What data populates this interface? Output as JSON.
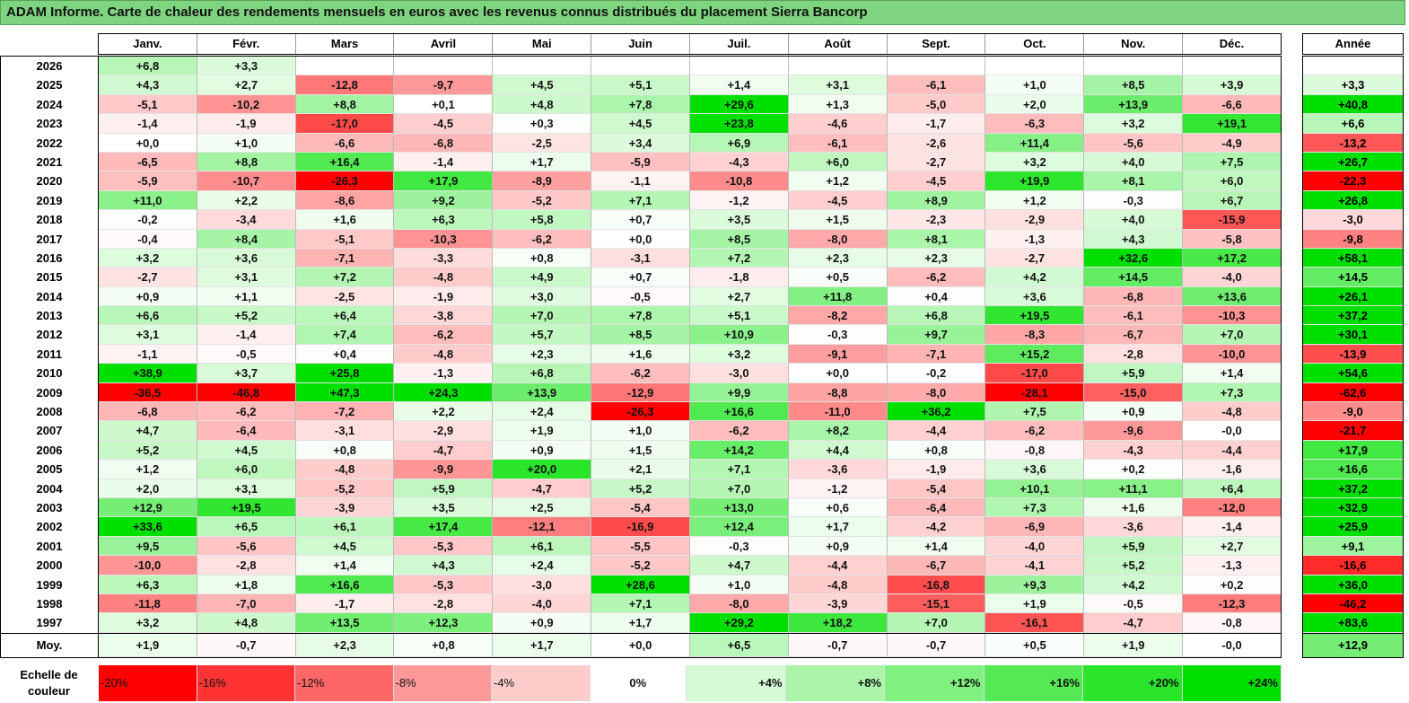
{
  "title": "ADAM Informe. Carte de chaleur des rendements mensuels en euros avec les revenus connus distribués du placement Sierra Bancorp",
  "chart_data": {
    "type": "heatmap",
    "title": "ADAM Informe. Carte de chaleur des rendements mensuels en euros avec les revenus connus distribués du placement Sierra Bancorp",
    "months": [
      "Janv.",
      "Févr.",
      "Mars",
      "Avril",
      "Mai",
      "Juin",
      "Juil.",
      "Août",
      "Sept.",
      "Oct.",
      "Nov.",
      "Déc."
    ],
    "year_header": "Année",
    "rows": [
      {
        "year": "2026",
        "values": [
          "+6,8",
          "+3,3",
          "",
          "",
          "",
          "",
          "",
          "",
          "",
          "",
          "",
          ""
        ],
        "annual": ""
      },
      {
        "year": "2025",
        "values": [
          "+4,3",
          "+2,7",
          "-12,8",
          "-9,7",
          "+4,5",
          "+5,1",
          "+1,4",
          "+3,1",
          "-6,1",
          "+1,0",
          "+8,5",
          "+3,9"
        ],
        "annual": "+3,3"
      },
      {
        "year": "2024",
        "values": [
          "-5,1",
          "-10,2",
          "+8,8",
          "+0,1",
          "+4,8",
          "+7,8",
          "+29,6",
          "+1,3",
          "-5,0",
          "+2,0",
          "+13,9",
          "-6,6"
        ],
        "annual": "+40,8"
      },
      {
        "year": "2023",
        "values": [
          "-1,4",
          "-1,9",
          "-17,0",
          "-4,5",
          "+0,3",
          "+4,5",
          "+23,8",
          "-4,6",
          "-1,7",
          "-6,3",
          "+3,2",
          "+19,1"
        ],
        "annual": "+6,6"
      },
      {
        "year": "2022",
        "values": [
          "+0,0",
          "+1,0",
          "-6,6",
          "-6,8",
          "-2,5",
          "+3,4",
          "+6,9",
          "-6,1",
          "-2,6",
          "+11,4",
          "-5,6",
          "-4,9"
        ],
        "annual": "-13,2"
      },
      {
        "year": "2021",
        "values": [
          "-6,5",
          "+8,8",
          "+16,4",
          "-1,4",
          "+1,7",
          "-5,9",
          "-4,3",
          "+6,0",
          "-2,7",
          "+3,2",
          "+4,0",
          "+7,5"
        ],
        "annual": "+26,7"
      },
      {
        "year": "2020",
        "values": [
          "-5,9",
          "-10,7",
          "-26,3",
          "+17,9",
          "-8,9",
          "-1,1",
          "-10,8",
          "+1,2",
          "-4,5",
          "+19,9",
          "+8,1",
          "+6,0"
        ],
        "annual": "-22,3"
      },
      {
        "year": "2019",
        "values": [
          "+11,0",
          "+2,2",
          "-8,6",
          "+9,2",
          "-5,2",
          "+7,1",
          "-1,2",
          "-4,5",
          "+8,9",
          "+1,2",
          "-0,3",
          "+6,7"
        ],
        "annual": "+26,8"
      },
      {
        "year": "2018",
        "values": [
          "-0,2",
          "-3,4",
          "+1,6",
          "+6,3",
          "+5,8",
          "+0,7",
          "+3,5",
          "+1,5",
          "-2,3",
          "-2,9",
          "+4,0",
          "-15,9"
        ],
        "annual": "-3,0"
      },
      {
        "year": "2017",
        "values": [
          "-0,4",
          "+8,4",
          "-5,1",
          "-10,3",
          "-6,2",
          "+0,0",
          "+8,5",
          "-8,0",
          "+8,1",
          "-1,3",
          "+4,3",
          "-5,8"
        ],
        "annual": "-9,8"
      },
      {
        "year": "2016",
        "values": [
          "+3,2",
          "+3,6",
          "-7,1",
          "-3,3",
          "+0,8",
          "-3,1",
          "+7,2",
          "+2,3",
          "+2,3",
          "-2,7",
          "+32,6",
          "+17,2"
        ],
        "annual": "+58,1"
      },
      {
        "year": "2015",
        "values": [
          "-2,7",
          "+3,1",
          "+7,2",
          "-4,8",
          "+4,9",
          "+0,7",
          "-1,8",
          "+0,5",
          "-6,2",
          "+4,2",
          "+14,5",
          "-4,0"
        ],
        "annual": "+14,5"
      },
      {
        "year": "2014",
        "values": [
          "+0,9",
          "+1,1",
          "-2,5",
          "-1,9",
          "+3,0",
          "-0,5",
          "+2,7",
          "+11,8",
          "+0,4",
          "+3,6",
          "-6,8",
          "+13,6"
        ],
        "annual": "+26,1"
      },
      {
        "year": "2013",
        "values": [
          "+6,6",
          "+5,2",
          "+6,4",
          "-3,8",
          "+7,0",
          "+7,8",
          "+5,1",
          "-8,2",
          "+6,8",
          "+19,5",
          "-6,1",
          "-10,3"
        ],
        "annual": "+37,2"
      },
      {
        "year": "2012",
        "values": [
          "+3,1",
          "-1,4",
          "+7,4",
          "-6,2",
          "+5,7",
          "+8,5",
          "+10,9",
          "-0,3",
          "+9,7",
          "-8,3",
          "-6,7",
          "+7,0"
        ],
        "annual": "+30,1"
      },
      {
        "year": "2011",
        "values": [
          "-1,1",
          "-0,5",
          "+0,4",
          "-4,8",
          "+2,3",
          "+1,6",
          "+3,2",
          "-9,1",
          "-7,1",
          "+15,2",
          "-2,8",
          "-10,0"
        ],
        "annual": "-13,9"
      },
      {
        "year": "2010",
        "values": [
          "+38,9",
          "+3,7",
          "+25,8",
          "-1,3",
          "+6,8",
          "-6,2",
          "-3,0",
          "+0,0",
          "-0,2",
          "-17,0",
          "+5,9",
          "+1,4"
        ],
        "annual": "+54,6"
      },
      {
        "year": "2009",
        "values": [
          "-36,5",
          "-46,8",
          "+47,3",
          "+24,3",
          "+13,9",
          "-12,9",
          "+9,9",
          "-8,8",
          "-8,0",
          "-28,1",
          "-15,0",
          "+7,3"
        ],
        "annual": "-62,6"
      },
      {
        "year": "2008",
        "values": [
          "-6,8",
          "-6,2",
          "-7,2",
          "+2,2",
          "+2,4",
          "-26,3",
          "+16,6",
          "-11,0",
          "+36,2",
          "+7,5",
          "+0,9",
          "-4,8"
        ],
        "annual": "-9,0"
      },
      {
        "year": "2007",
        "values": [
          "+4,7",
          "-6,4",
          "-3,1",
          "-2,9",
          "+1,9",
          "+1,0",
          "-6,2",
          "+8,2",
          "-4,4",
          "-6,2",
          "-9,6",
          "-0,0"
        ],
        "annual": "-21,7"
      },
      {
        "year": "2006",
        "values": [
          "+5,2",
          "+4,5",
          "+0,8",
          "-4,7",
          "+0,9",
          "+1,5",
          "+14,2",
          "+4,4",
          "+0,8",
          "-0,8",
          "-4,3",
          "-4,4"
        ],
        "annual": "+17,9"
      },
      {
        "year": "2005",
        "values": [
          "+1,2",
          "+6,0",
          "-4,8",
          "-9,9",
          "+20,0",
          "+2,1",
          "+7,1",
          "-3,6",
          "-1,9",
          "+3,6",
          "+0,2",
          "-1,6"
        ],
        "annual": "+16,6"
      },
      {
        "year": "2004",
        "values": [
          "+2,0",
          "+3,1",
          "-5,2",
          "+5,9",
          "-4,7",
          "+5,2",
          "+7,0",
          "-1,2",
          "-5,4",
          "+10,1",
          "+11,1",
          "+6,4"
        ],
        "annual": "+37,2"
      },
      {
        "year": "2003",
        "values": [
          "+12,9",
          "+19,5",
          "-3,9",
          "+3,5",
          "+2,5",
          "-5,4",
          "+13,0",
          "+0,6",
          "-6,4",
          "+7,3",
          "+1,6",
          "-12,0"
        ],
        "annual": "+32,9"
      },
      {
        "year": "2002",
        "values": [
          "+33,6",
          "+6,5",
          "+6,1",
          "+17,4",
          "-12,1",
          "-16,9",
          "+12,4",
          "+1,7",
          "-4,2",
          "-6,9",
          "-3,6",
          "-1,4"
        ],
        "annual": "+25,9"
      },
      {
        "year": "2001",
        "values": [
          "+9,5",
          "-5,6",
          "+4,5",
          "-5,3",
          "+6,1",
          "-5,5",
          "-0,3",
          "+0,9",
          "+1,4",
          "-4,0",
          "+5,9",
          "+2,7"
        ],
        "annual": "+9,1"
      },
      {
        "year": "2000",
        "values": [
          "-10,0",
          "-2,8",
          "+1,4",
          "+4,3",
          "+2,4",
          "-5,2",
          "+4,7",
          "-4,4",
          "-6,7",
          "-4,1",
          "+5,2",
          "-1,3"
        ],
        "annual": "-16,6"
      },
      {
        "year": "1999",
        "values": [
          "+6,3",
          "+1,8",
          "+16,6",
          "-5,3",
          "-3,0",
          "+28,6",
          "+1,0",
          "-4,8",
          "-16,8",
          "+9,3",
          "+4,2",
          "+0,2"
        ],
        "annual": "+36,0"
      },
      {
        "year": "1998",
        "values": [
          "-11,8",
          "-7,0",
          "-1,7",
          "-2,8",
          "-4,0",
          "+7,1",
          "-8,0",
          "-3,9",
          "-15,1",
          "+1,9",
          "-0,5",
          "-12,3"
        ],
        "annual": "-46,2"
      },
      {
        "year": "1997",
        "values": [
          "+3,2",
          "+4,8",
          "+13,5",
          "+12,3",
          "+0,9",
          "+1,7",
          "+29,2",
          "+18,2",
          "+7,0",
          "-16,1",
          "-4,7",
          "-0,8"
        ],
        "annual": "+83,6"
      }
    ],
    "average": {
      "label": "Moy.",
      "values": [
        "+1,9",
        "-0,7",
        "+2,3",
        "+0,8",
        "+1,7",
        "+0,0",
        "+6,5",
        "-0,7",
        "-0,7",
        "+0,5",
        "+1,9",
        "-0,0"
      ],
      "annual": "+12,9"
    },
    "scale": {
      "label": "Echelle de couleur",
      "steps": [
        "-20%",
        "-16%",
        "-12%",
        "-8%",
        "-4%",
        "0%",
        "+4%",
        "+8%",
        "+12%",
        "+16%",
        "+20%",
        "+24%"
      ],
      "step_values": [
        -20,
        -16,
        -12,
        -8,
        -4,
        0,
        4,
        8,
        12,
        16,
        20,
        24
      ]
    },
    "colors": {
      "negative_max": "#ff0000",
      "neutral": "#ffffff",
      "positive_max": "#00e000",
      "title_bg": "#7fd47f"
    }
  }
}
